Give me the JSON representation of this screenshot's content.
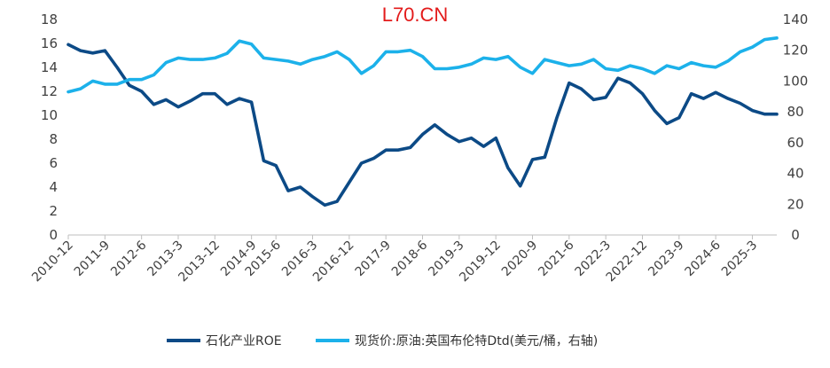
{
  "watermark": "L70.CN",
  "colors": {
    "roe": "#0c4a86",
    "brent": "#1cb1ea",
    "watermark": "#e31b1b",
    "axis": "#bfbfbf",
    "text": "#404040"
  },
  "chart_data": {
    "type": "line",
    "title": "",
    "xlabel": "",
    "ylabel": "",
    "y2label": "",
    "grid": false,
    "legend_position": "bottom",
    "x_tick_labels": [
      "2010-12",
      "2011-9",
      "2012-6",
      "2013-3",
      "2013-12",
      "2014-9",
      "2015-6",
      "2016-3",
      "2016-12",
      "2017-9",
      "2018-6",
      "2019-3",
      "2019-12",
      "2020-9",
      "2021-6",
      "2022-3",
      "2022-12",
      "2023-9",
      "2024-6",
      "2025-3"
    ],
    "left_axis": {
      "ylim": [
        0,
        18
      ],
      "ticks": [
        "0",
        "2",
        "4",
        "6",
        "8",
        "10",
        "12",
        "14",
        "16",
        "18"
      ]
    },
    "right_axis": {
      "ylim": [
        0,
        140
      ],
      "ticks": [
        "0",
        "20",
        "40",
        "60",
        "80",
        "100",
        "120",
        "140"
      ]
    },
    "x": [
      "2010-12",
      "2011-3",
      "2011-6",
      "2011-9",
      "2011-12",
      "2012-3",
      "2012-6",
      "2012-9",
      "2012-12",
      "2013-3",
      "2013-6",
      "2013-9",
      "2013-12",
      "2014-3",
      "2014-6",
      "2014-9",
      "2015-3",
      "2015-6",
      "2015-9",
      "2015-12",
      "2016-3",
      "2016-6",
      "2016-9",
      "2016-12",
      "2017-3",
      "2017-6",
      "2017-9",
      "2017-12",
      "2018-3",
      "2018-6",
      "2018-9",
      "2018-12",
      "2019-3",
      "2019-6",
      "2019-9",
      "2019-12",
      "2020-3",
      "2020-6",
      "2020-9",
      "2020-12",
      "2021-3",
      "2021-6",
      "2021-9",
      "2021-12",
      "2022-3",
      "2022-6",
      "2022-9",
      "2022-12",
      "2023-3",
      "2023-6",
      "2023-9",
      "2023-12",
      "2024-3",
      "2024-6",
      "2024-9",
      "2024-12",
      "2025-3",
      "2025-6",
      "2025-9"
    ],
    "series": [
      {
        "name": "石化产业ROE",
        "axis": "left",
        "values": [
          15.9,
          15.4,
          15.2,
          15.4,
          14.0,
          12.5,
          12.0,
          10.9,
          11.3,
          10.7,
          11.2,
          11.8,
          11.8,
          10.9,
          11.4,
          11.1,
          6.2,
          5.8,
          3.7,
          4.0,
          3.2,
          2.5,
          2.8,
          4.4,
          6.0,
          6.4,
          7.1,
          7.1,
          7.3,
          8.4,
          9.2,
          8.4,
          7.8,
          8.1,
          7.4,
          8.1,
          5.6,
          4.1,
          6.3,
          6.5,
          9.8,
          12.7,
          12.2,
          11.3,
          11.5,
          13.1,
          12.7,
          11.8,
          10.4,
          9.3,
          9.8,
          11.8,
          11.4,
          11.9,
          11.4,
          11.0,
          10.4,
          10.1,
          10.1
        ]
      },
      {
        "name": "现货价:原油:英国布伦特Dtd(美元/桶，右轴)",
        "axis": "right",
        "values": [
          93,
          95,
          100,
          98,
          98,
          101,
          101,
          104,
          112,
          115,
          114,
          114,
          115,
          118,
          126,
          124,
          115,
          114,
          113,
          111,
          114,
          116,
          119,
          114,
          105,
          110,
          119,
          119,
          120,
          116,
          108,
          108,
          109,
          111,
          115,
          114,
          116,
          109,
          105,
          114,
          112,
          110,
          111,
          114,
          108,
          107,
          110,
          108,
          105,
          110,
          108,
          112,
          110,
          109,
          113,
          119,
          122,
          127,
          128
        ]
      }
    ],
    "legend": [
      {
        "label": "石化产业ROE"
      },
      {
        "label": "现货价:原油:英国布伦特Dtd(美元/桶，右轴)"
      }
    ]
  }
}
